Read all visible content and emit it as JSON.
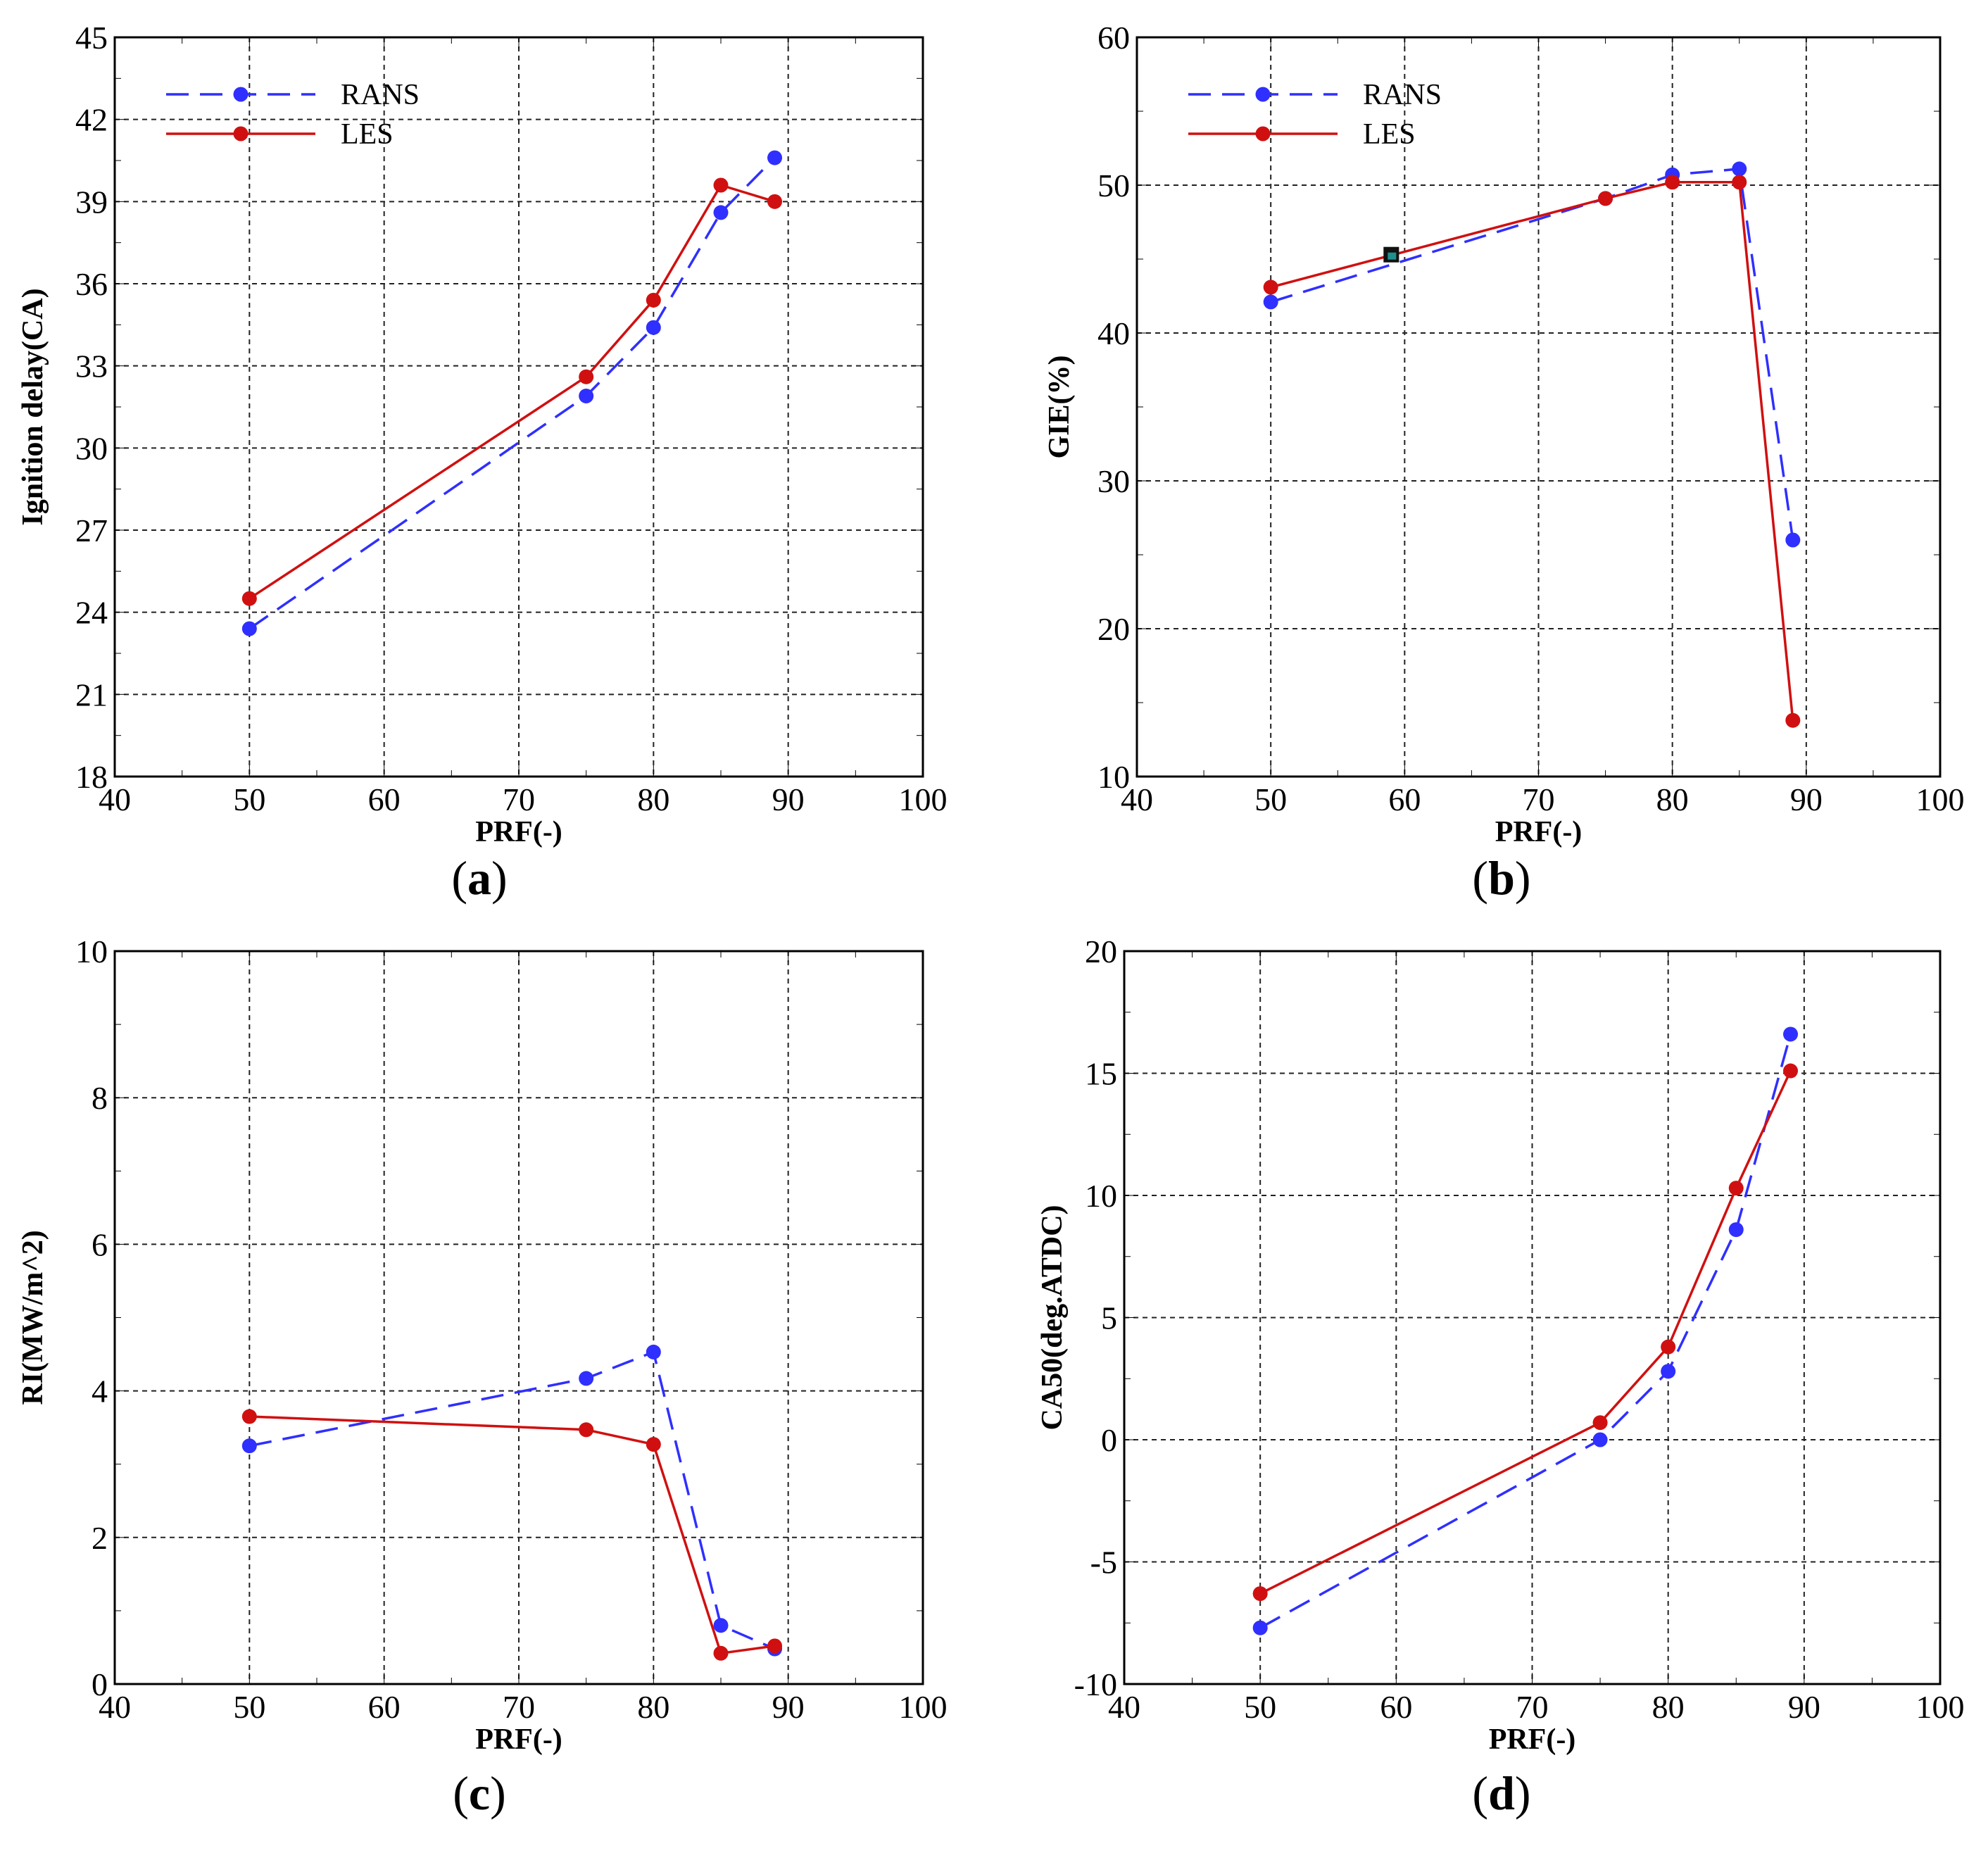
{
  "colors": {
    "rans": "#2f2fff",
    "les": "#d01010",
    "grid": "#222222",
    "axis": "#000000",
    "marker_extra": "#1f8f8f"
  },
  "legend": {
    "rans_label": "RANS",
    "les_label": "LES"
  },
  "chart_data": [
    {
      "id": "a",
      "type": "line",
      "caption_letter": "a",
      "xlabel": "PRF(-)",
      "ylabel": "Ignition delay(CA)",
      "xlim": [
        40,
        100
      ],
      "ylim": [
        18,
        45
      ],
      "xticks": [
        "40",
        "50",
        "60",
        "70",
        "80",
        "90",
        "100"
      ],
      "yticks": [
        "18",
        "21",
        "24",
        "27",
        "30",
        "33",
        "36",
        "39",
        "42",
        "45"
      ],
      "grid": true,
      "legend_position": "top-left",
      "series": [
        {
          "name": "RANS",
          "x": [
            50,
            75,
            80,
            85,
            89
          ],
          "y": [
            23.4,
            31.9,
            34.4,
            38.6,
            40.6
          ]
        },
        {
          "name": "LES",
          "x": [
            50,
            75,
            80,
            85,
            89
          ],
          "y": [
            24.5,
            32.6,
            35.4,
            39.6,
            39.0
          ]
        }
      ]
    },
    {
      "id": "b",
      "type": "line",
      "caption_letter": "b",
      "xlabel": "PRF(-)",
      "ylabel": "GIE(%)",
      "xlim": [
        40,
        100
      ],
      "ylim": [
        10,
        60
      ],
      "xticks": [
        "40",
        "50",
        "60",
        "70",
        "80",
        "90",
        "100"
      ],
      "yticks": [
        "10",
        "20",
        "30",
        "40",
        "50",
        "60"
      ],
      "grid": true,
      "legend_position": "top-left",
      "extra_marker": {
        "x": 59,
        "y": 45.3
      },
      "series": [
        {
          "name": "RANS",
          "x": [
            50,
            75,
            80,
            85,
            89
          ],
          "y": [
            42.1,
            49.1,
            50.7,
            51.1,
            26.0
          ]
        },
        {
          "name": "LES",
          "x": [
            50,
            75,
            80,
            85,
            89
          ],
          "y": [
            43.1,
            49.1,
            50.2,
            50.2,
            13.8
          ]
        }
      ]
    },
    {
      "id": "c",
      "type": "line",
      "caption_letter": "c",
      "xlabel": "PRF(-)",
      "ylabel": "RI(MW/m^2)",
      "xlim": [
        40,
        100
      ],
      "ylim": [
        0,
        10
      ],
      "xticks": [
        "40",
        "50",
        "60",
        "70",
        "80",
        "90",
        "100"
      ],
      "yticks": [
        "0",
        "2",
        "4",
        "6",
        "8",
        "10"
      ],
      "grid": true,
      "legend_position": "none",
      "series": [
        {
          "name": "RANS",
          "x": [
            50,
            75,
            80,
            85,
            89
          ],
          "y": [
            3.25,
            4.17,
            4.53,
            0.8,
            0.48
          ]
        },
        {
          "name": "LES",
          "x": [
            50,
            75,
            80,
            85,
            89
          ],
          "y": [
            3.65,
            3.47,
            3.27,
            0.42,
            0.52
          ]
        }
      ]
    },
    {
      "id": "d",
      "type": "line",
      "caption_letter": "d",
      "xlabel": "PRF(-)",
      "ylabel": "CA50(deg.ATDC)",
      "xlim": [
        40,
        100
      ],
      "ylim": [
        -10,
        20
      ],
      "xticks": [
        "40",
        "50",
        "60",
        "70",
        "80",
        "90",
        "100"
      ],
      "yticks": [
        "-10",
        "-5",
        "0",
        "5",
        "10",
        "15",
        "20"
      ],
      "grid": true,
      "legend_position": "none",
      "series": [
        {
          "name": "RANS",
          "x": [
            50,
            75,
            80,
            85,
            89
          ],
          "y": [
            -7.7,
            0.0,
            2.8,
            8.6,
            16.6
          ]
        },
        {
          "name": "LES",
          "x": [
            50,
            75,
            80,
            85,
            89
          ],
          "y": [
            -6.3,
            0.7,
            3.8,
            10.3,
            15.1
          ]
        }
      ]
    }
  ]
}
